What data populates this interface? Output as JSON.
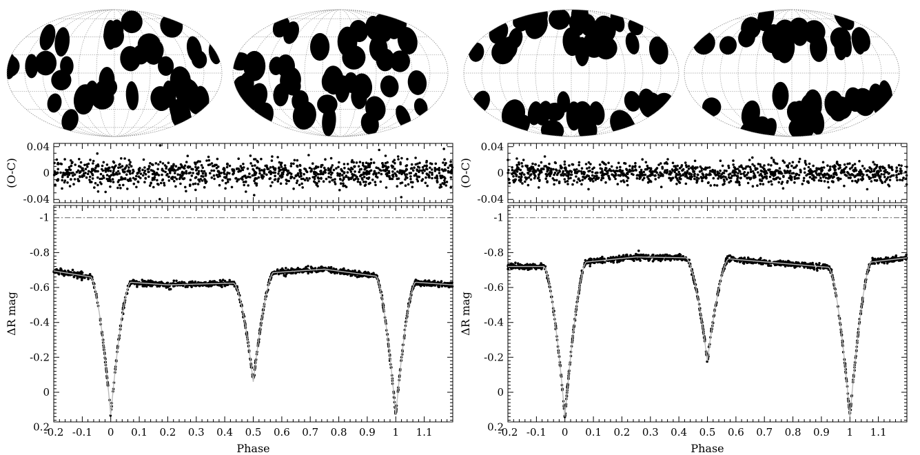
{
  "chart_data": [
    {
      "type": "scatter",
      "panel": "left",
      "maps": {
        "description_visible": "two Mollweide-projection star spot maps with graticule",
        "spot_color": "#000000",
        "maps_count": 2
      },
      "residuals": {
        "ylabel": "(O-C)",
        "ylim": [
          -0.045,
          0.045
        ],
        "yticks": [
          0.04,
          0,
          -0.04
        ],
        "ytick_labels": [
          "0.04",
          "0",
          "-0.04"
        ],
        "scatter_amplitude": 0.014
      },
      "light_curve": {
        "ylabel": "ΔR mag",
        "xlabel": "Phase",
        "xlim": [
          -0.2,
          1.2
        ],
        "ylim": [
          -1.07,
          0.17
        ],
        "y_inverted": true,
        "xticks": [
          -0.2,
          -0.1,
          0,
          0.1,
          0.2,
          0.3,
          0.4,
          0.5,
          0.6,
          0.7,
          0.8,
          0.9,
          1,
          1.1
        ],
        "xtick_labels": [
          "-0.2",
          "-0.1",
          "0",
          "0.1",
          "0.2",
          "0.3",
          "0.4",
          "0.5",
          "0.6",
          "0.7",
          "0.8",
          "0.9",
          "1",
          "1.1"
        ],
        "yticks": [
          -1,
          -0.8,
          -0.6,
          -0.4,
          -0.2,
          0,
          0.2
        ],
        "ytick_labels": [
          "-1",
          "-0.8",
          "-0.6",
          "-0.4",
          "-0.2",
          "0",
          "0.2"
        ],
        "reference_line_y": -1.0,
        "primary_min_depth": 0.13,
        "secondary_min_depth": -0.06,
        "max_after_primary": -0.615,
        "max_after_secondary": -0.7,
        "ingress_width": 0.07,
        "out_of_eclipse": [
          {
            "phase": -0.2,
            "mag": -0.695
          },
          {
            "phase": -0.07,
            "mag": -0.66
          },
          {
            "phase": 0.07,
            "mag": -0.63
          },
          {
            "phase": 0.2,
            "mag": -0.615
          },
          {
            "phase": 0.43,
            "mag": -0.625
          },
          {
            "phase": 0.57,
            "mag": -0.685
          },
          {
            "phase": 0.75,
            "mag": -0.705
          },
          {
            "phase": 0.93,
            "mag": -0.665
          },
          {
            "phase": 1.07,
            "mag": -0.63
          },
          {
            "phase": 1.2,
            "mag": -0.615
          }
        ]
      }
    },
    {
      "type": "scatter",
      "panel": "right",
      "maps": {
        "description_visible": "two Mollweide-projection star spot maps with graticule",
        "spot_color": "#000000",
        "maps_count": 2
      },
      "residuals": {
        "ylabel": "(O-C)",
        "ylim": [
          -0.045,
          0.045
        ],
        "yticks": [
          0.04,
          0,
          -0.04
        ],
        "ytick_labels": [
          "0.04",
          "0",
          "-0.04"
        ],
        "scatter_amplitude": 0.011
      },
      "light_curve": {
        "ylabel": "ΔR mag",
        "xlabel": "Phase",
        "xlim": [
          -0.2,
          1.2
        ],
        "ylim": [
          -1.07,
          0.17
        ],
        "y_inverted": true,
        "xticks": [
          -0.2,
          -0.1,
          0,
          0.1,
          0.2,
          0.3,
          0.4,
          0.5,
          0.6,
          0.7,
          0.8,
          0.9,
          1,
          1.1
        ],
        "xtick_labels": [
          "-0.2",
          "-0.1",
          "0",
          "0.1",
          "0.2",
          "0.3",
          "0.4",
          "0.5",
          "0.6",
          "0.7",
          "0.8",
          "0.9",
          "1",
          "1.1"
        ],
        "yticks": [
          -1,
          -0.8,
          -0.6,
          -0.4,
          -0.2,
          0,
          0.2
        ],
        "ytick_labels": [
          "-1",
          "-0.8",
          "-0.6",
          "-0.4",
          "-0.2",
          "0",
          "0.2"
        ],
        "reference_line_y": -1.0,
        "primary_min_depth": 0.14,
        "secondary_min_depth": -0.18,
        "ingress_width": 0.075,
        "out_of_eclipse": [
          {
            "phase": -0.2,
            "mag": -0.72
          },
          {
            "phase": -0.08,
            "mag": -0.72
          },
          {
            "phase": 0.07,
            "mag": -0.745
          },
          {
            "phase": 0.25,
            "mag": -0.775
          },
          {
            "phase": 0.43,
            "mag": -0.77
          },
          {
            "phase": 0.57,
            "mag": -0.765
          },
          {
            "phase": 0.75,
            "mag": -0.74
          },
          {
            "phase": 0.93,
            "mag": -0.715
          },
          {
            "phase": 1.07,
            "mag": -0.745
          },
          {
            "phase": 1.2,
            "mag": -0.77
          }
        ]
      }
    }
  ]
}
